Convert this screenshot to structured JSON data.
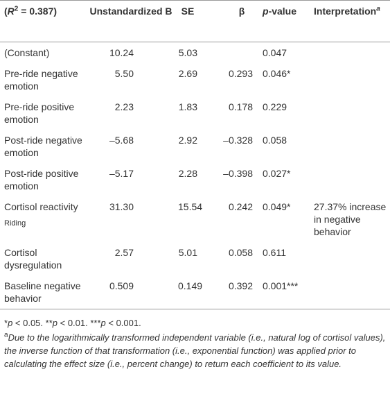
{
  "table": {
    "header": [
      [
        "(",
        "R",
        "2",
        " = 0.387)"
      ],
      [
        "Unstandardized B"
      ],
      [
        "SE"
      ],
      [
        "β"
      ],
      [
        "p",
        "-value"
      ],
      [
        "Interpretation",
        "a"
      ]
    ],
    "rows": [
      [
        "(Constant)",
        "10.24",
        "5.03",
        null,
        "0.047",
        null
      ],
      [
        "Pre-ride negative emotion",
        "5.50",
        "2.69",
        "0.293",
        "0.046*",
        null
      ],
      [
        "Pre-ride positive emotion",
        "2.23",
        "1.83",
        "0.178",
        "0.229",
        null
      ],
      [
        "Post-ride negative emotion",
        "–5.68",
        "2.92",
        "–0.328",
        "0.058",
        null
      ],
      [
        "Post-ride positive emotion",
        "–5.17",
        "2.28",
        "–0.398",
        "0.027*",
        null
      ],
      [
        [
          "Cortisol reactivity",
          "Riding"
        ],
        "31.30",
        "15.54",
        "0.242",
        "0.049*",
        "27.37% increase in negative behavior"
      ],
      [
        "Cortisol dysregulation",
        "2.57",
        "5.01",
        "0.058",
        "0.611",
        null
      ],
      [
        "Baseline negative behavior",
        "0.509",
        "0.149",
        "0.392",
        "0.001***",
        null
      ]
    ]
  },
  "notes": [
    [
      "*",
      "p",
      " < 0.05. **",
      "p",
      " < 0.01. ***",
      "p",
      " < 0.001."
    ],
    [
      "a",
      "Due to the logarithmically transformed independent variable (i.e., natural log of cortisol values), the inverse function of that transformation (i.e., exponential function) was applied prior to calculating the effect size (i.e., percent change) to return each coefficient to its value."
    ]
  ]
}
